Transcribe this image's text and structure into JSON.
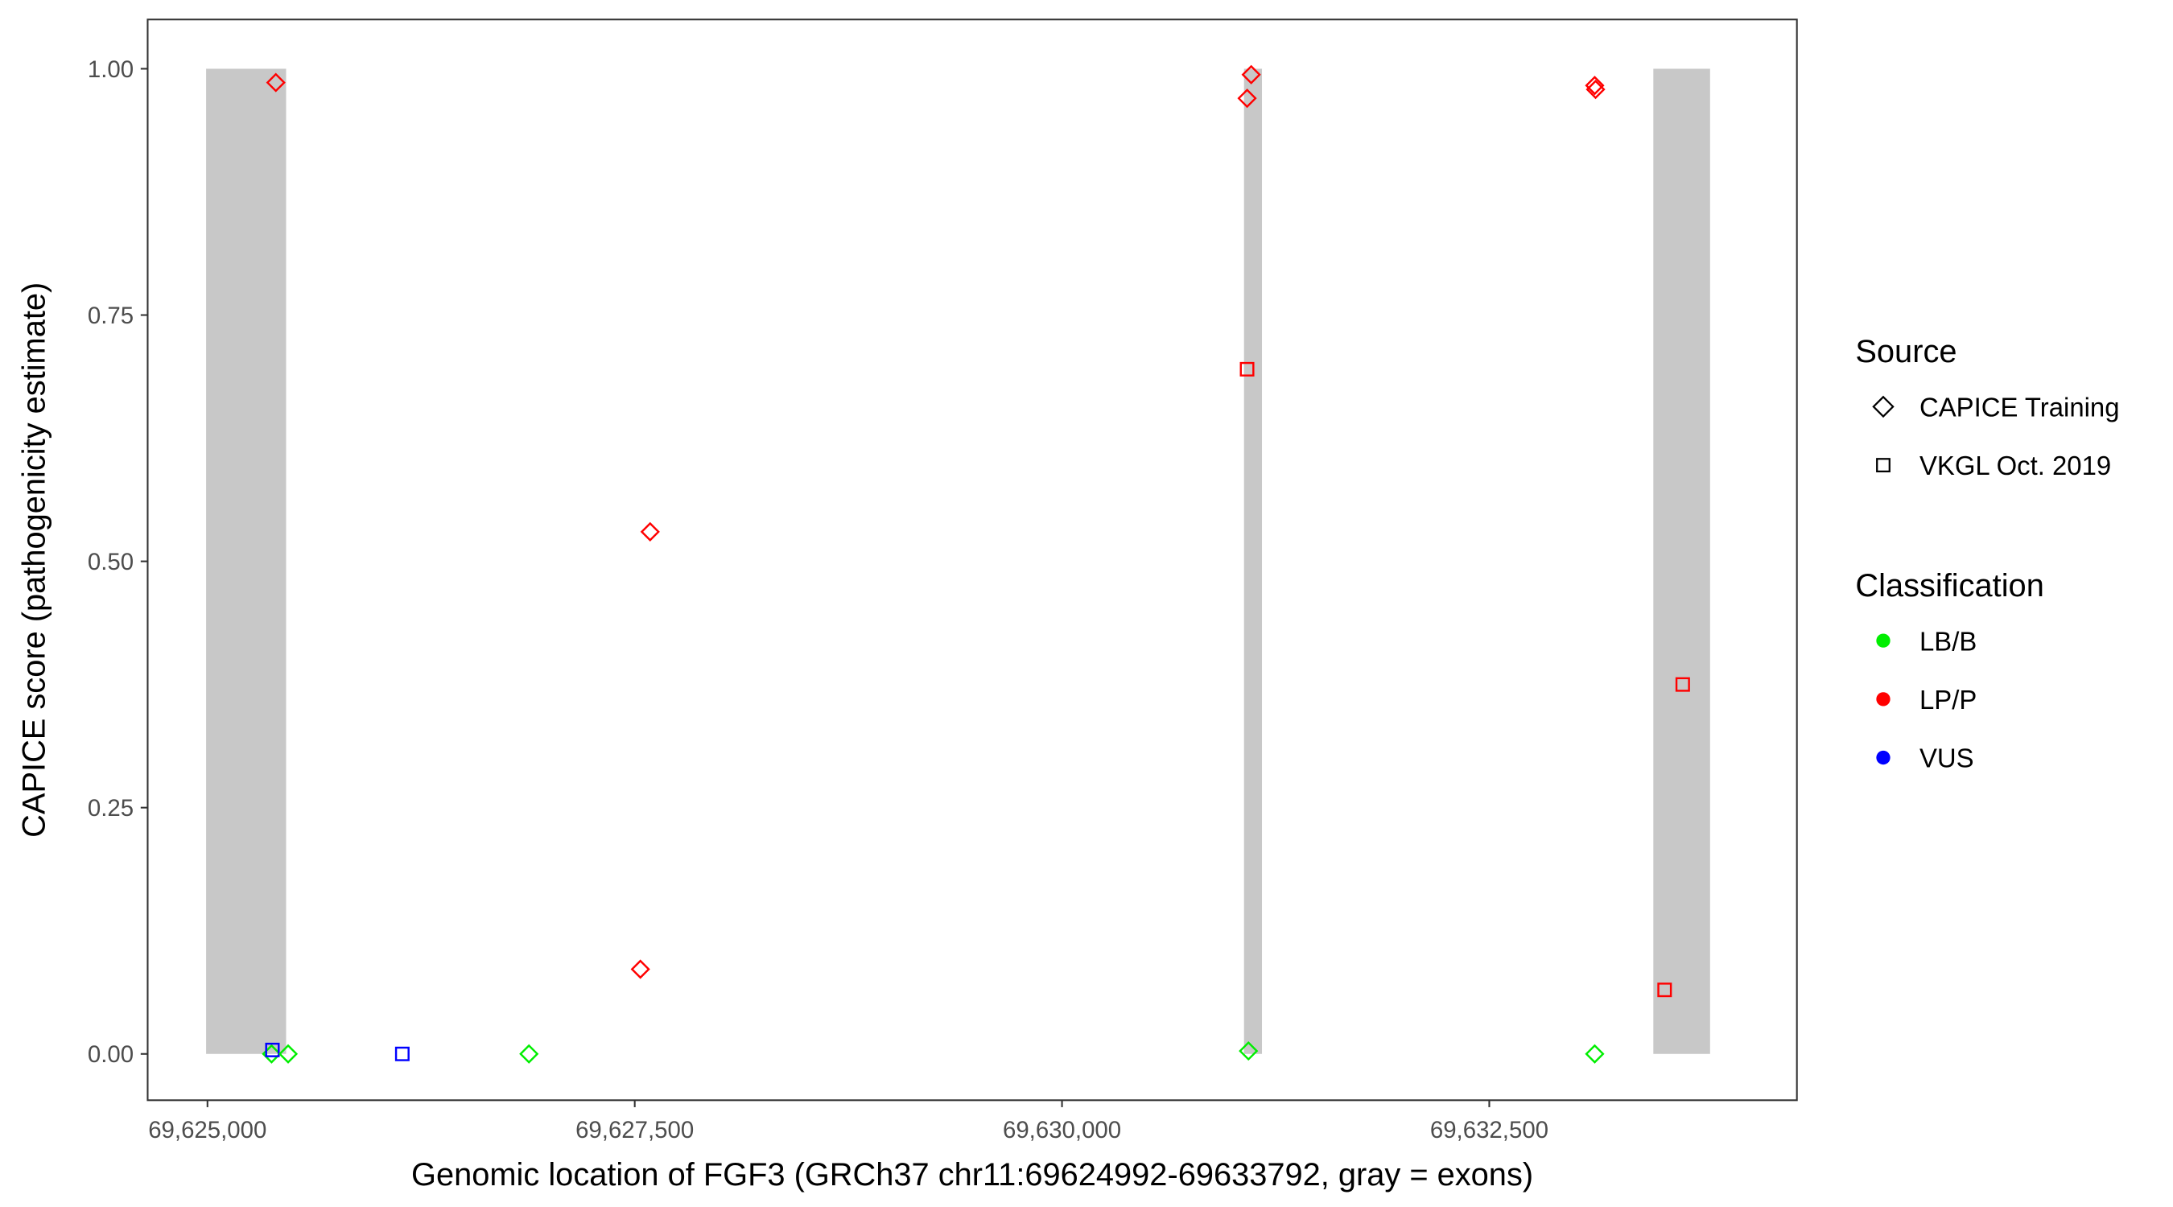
{
  "chart_data": {
    "type": "scatter",
    "xlabel": "Genomic location of FGF3 (GRCh37 chr11:69624992-69633792, gray = exons)",
    "ylabel": "CAPICE score (pathogenicity estimate)",
    "xlim": [
      69624650,
      69634300
    ],
    "ylim": [
      -0.047,
      1.05
    ],
    "x_ticks": [
      69625000,
      69627500,
      69630000,
      69632500
    ],
    "x_tick_labels": [
      "69,625,000",
      "69,627,500",
      "69,630,000",
      "69,632,500"
    ],
    "y_ticks": [
      0,
      0.25,
      0.5,
      0.75,
      1
    ],
    "y_tick_labels": [
      "0.00",
      "0.25",
      "0.50",
      "0.75",
      "1.00"
    ],
    "grid": false,
    "exons": [
      {
        "start": 69624992,
        "end": 69625460
      },
      {
        "start": 69631065,
        "end": 69631170
      },
      {
        "start": 69633460,
        "end": 69633792
      }
    ],
    "exon_color": "#c8c8c8",
    "legend": {
      "placement": "right",
      "source_title": "Source",
      "source_entries": [
        {
          "label": "CAPICE Training",
          "shape": "diamond"
        },
        {
          "label": "VKGL Oct. 2019",
          "shape": "square"
        }
      ],
      "class_title": "Classification",
      "class_entries": [
        {
          "label": "LB/B",
          "color": "#00ee00"
        },
        {
          "label": "LP/P",
          "color": "#ff0000"
        },
        {
          "label": "VUS",
          "color": "#0000ff"
        }
      ]
    },
    "points": [
      {
        "x": 69625400,
        "y": 0.986,
        "source": "CAPICE Training",
        "class": "LP/P"
      },
      {
        "x": 69625375,
        "y": 0.0,
        "source": "CAPICE Training",
        "class": "LB/B"
      },
      {
        "x": 69625380,
        "y": 0.004,
        "source": "VKGL Oct. 2019",
        "class": "VUS"
      },
      {
        "x": 69625472,
        "y": 0.0,
        "source": "CAPICE Training",
        "class": "LB/B"
      },
      {
        "x": 69626140,
        "y": 0.0,
        "source": "VKGL Oct. 2019",
        "class": "VUS"
      },
      {
        "x": 69626881,
        "y": 0.0,
        "source": "CAPICE Training",
        "class": "LB/B"
      },
      {
        "x": 69627533,
        "y": 0.086,
        "source": "CAPICE Training",
        "class": "LP/P"
      },
      {
        "x": 69627590,
        "y": 0.53,
        "source": "CAPICE Training",
        "class": "LP/P"
      },
      {
        "x": 69631107,
        "y": 0.994,
        "source": "CAPICE Training",
        "class": "LP/P"
      },
      {
        "x": 69631083,
        "y": 0.97,
        "source": "CAPICE Training",
        "class": "LP/P"
      },
      {
        "x": 69631083,
        "y": 0.695,
        "source": "VKGL Oct. 2019",
        "class": "LP/P"
      },
      {
        "x": 69631091,
        "y": 0.003,
        "source": "CAPICE Training",
        "class": "LB/B"
      },
      {
        "x": 69633117,
        "y": 0.983,
        "source": "CAPICE Training",
        "class": "LP/P"
      },
      {
        "x": 69633122,
        "y": 0.979,
        "source": "CAPICE Training",
        "class": "LP/P"
      },
      {
        "x": 69633117,
        "y": 0.0,
        "source": "CAPICE Training",
        "class": "LB/B"
      },
      {
        "x": 69633526,
        "y": 0.065,
        "source": "VKGL Oct. 2019",
        "class": "LP/P"
      },
      {
        "x": 69633632,
        "y": 0.375,
        "source": "VKGL Oct. 2019",
        "class": "LP/P"
      }
    ]
  }
}
